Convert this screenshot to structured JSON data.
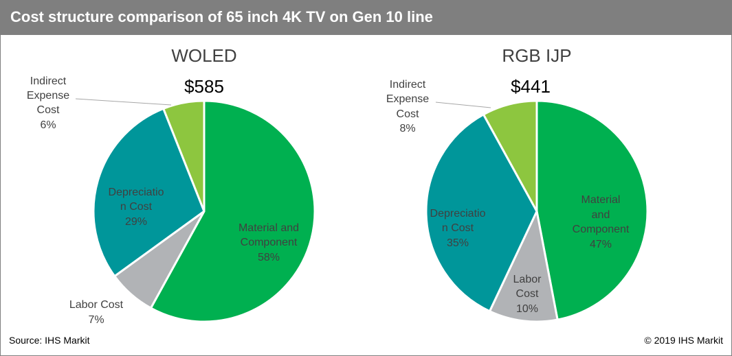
{
  "header": {
    "title": "Cost structure comparison of 65 inch 4K TV on Gen 10 line"
  },
  "footer": {
    "source": "Source: IHS Markit",
    "copyright": "© 2019 IHS Markit"
  },
  "chart_data": [
    {
      "type": "pie",
      "title": "WOLED",
      "total_label": "$585",
      "slices": [
        {
          "label": "Material and Component",
          "lines": [
            "Material and",
            "Component"
          ],
          "pct_label": "58%",
          "value": 58,
          "color": "#00b050"
        },
        {
          "label": "Labor Cost",
          "lines": [
            "Labor Cost"
          ],
          "pct_label": "7%",
          "value": 7,
          "color": "#b1b3b6"
        },
        {
          "label": "Depreciation Cost",
          "lines": [
            "Depreciatio",
            "n Cost"
          ],
          "pct_label": "29%",
          "value": 29,
          "color": "#00969a"
        },
        {
          "label": "Indirect Expense Cost",
          "lines": [
            "Indirect",
            "Expense",
            "Cost"
          ],
          "pct_label": "6%",
          "value": 6,
          "color": "#8dc63f"
        }
      ]
    },
    {
      "type": "pie",
      "title": "RGB IJP",
      "total_label": "$441",
      "slices": [
        {
          "label": "Material and Component",
          "lines": [
            "Material",
            "and",
            "Component"
          ],
          "pct_label": "47%",
          "value": 47,
          "color": "#00b050"
        },
        {
          "label": "Labor Cost",
          "lines": [
            "Labor",
            "Cost"
          ],
          "pct_label": "10%",
          "value": 10,
          "color": "#b1b3b6"
        },
        {
          "label": "Depreciation Cost",
          "lines": [
            "Depreciatio",
            "n Cost"
          ],
          "pct_label": "35%",
          "value": 35,
          "color": "#00969a"
        },
        {
          "label": "Indirect Expense Cost",
          "lines": [
            "Indirect",
            "Expense",
            "Cost"
          ],
          "pct_label": "8%",
          "value": 8,
          "color": "#8dc63f"
        }
      ]
    }
  ]
}
